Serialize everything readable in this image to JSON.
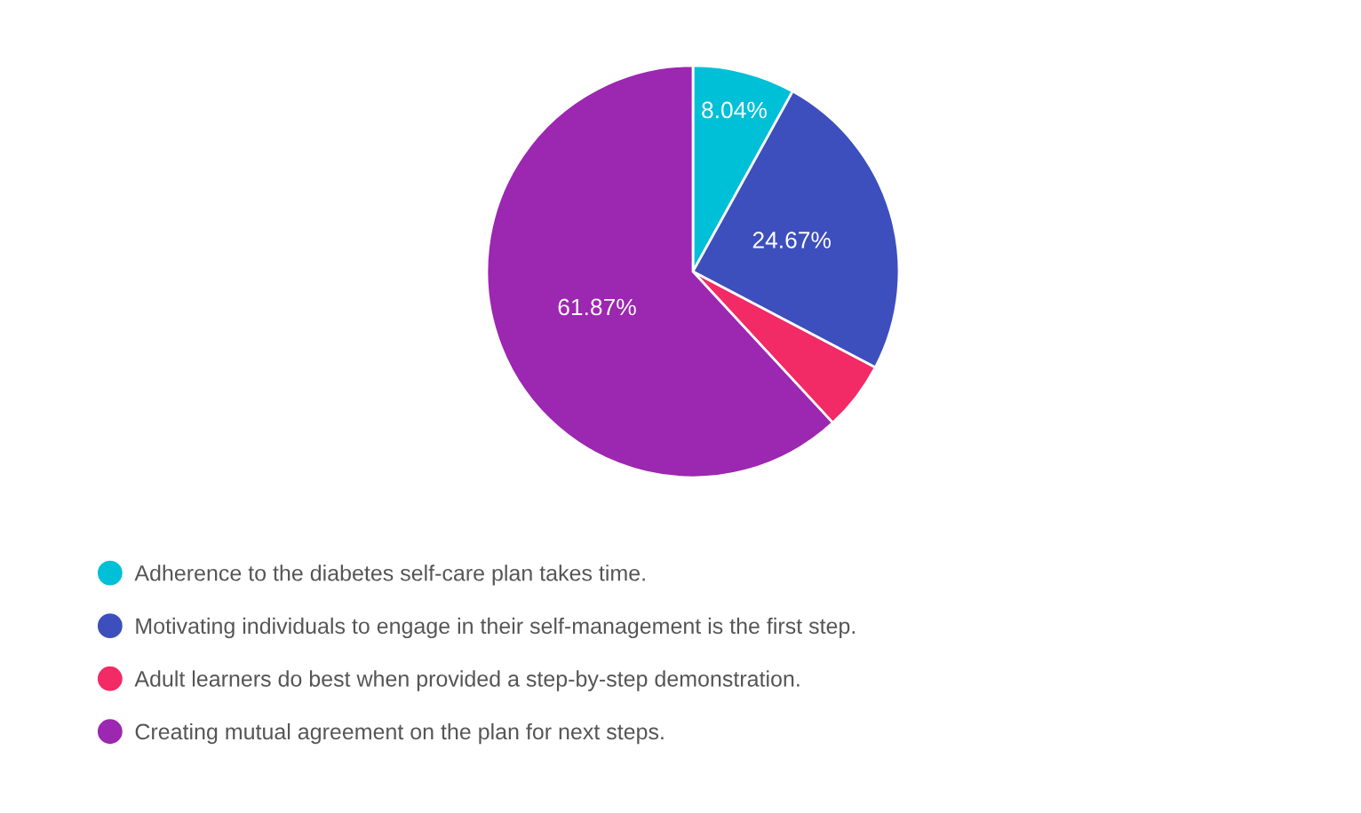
{
  "chart_data": {
    "type": "pie",
    "categories": [
      "Adherence to the diabetes self-care plan takes time.",
      "Motivating individuals to engage in their self-management is the first step.",
      "Adult learners do best when provided a step-by-step demonstration.",
      "Creating mutual agreement on the plan for next steps."
    ],
    "values": [
      8.04,
      24.67,
      5.42,
      61.87
    ],
    "colors": [
      "#00c0d7",
      "#3d4fbd",
      "#f22a66",
      "#9c27b0"
    ],
    "value_labels": [
      "8.04%",
      "24.67%",
      null,
      "61.87%"
    ],
    "legend": "bottom left"
  }
}
